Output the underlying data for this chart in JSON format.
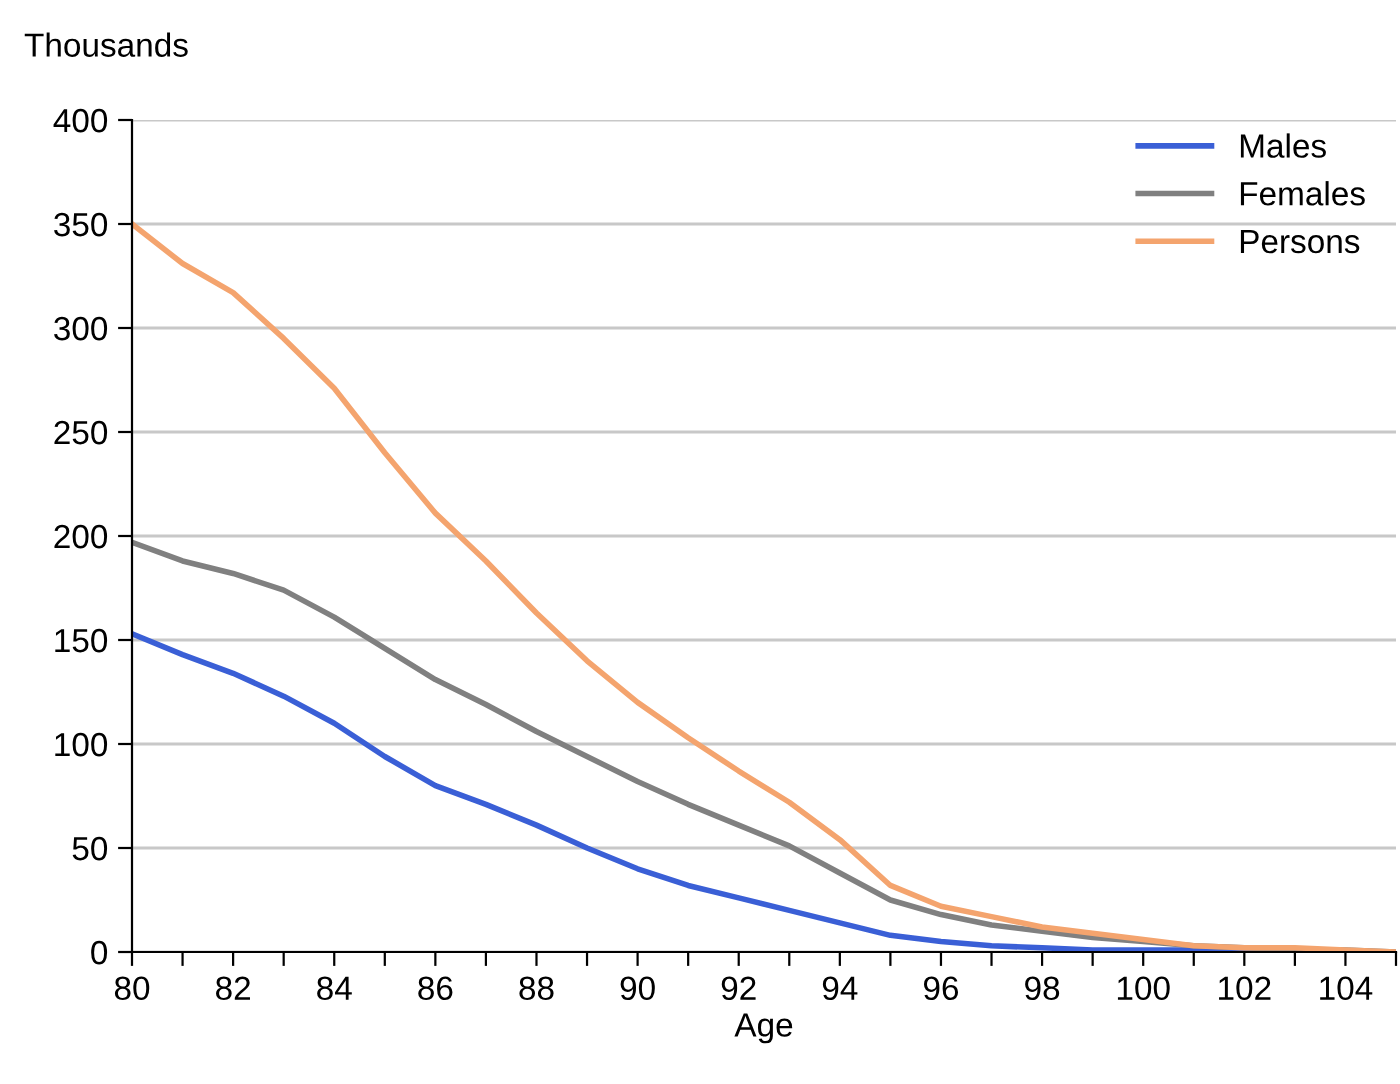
{
  "chart_data": {
    "type": "line",
    "xlabel": "Age",
    "ylabel": "Thousands",
    "x": [
      80,
      81,
      82,
      83,
      84,
      85,
      86,
      87,
      88,
      89,
      90,
      91,
      92,
      93,
      94,
      95,
      96,
      97,
      98,
      99,
      100,
      101,
      102,
      103,
      104,
      105
    ],
    "series": [
      {
        "name": "Males",
        "color": "#3a5fd6",
        "values": [
          153,
          143,
          134,
          123,
          110,
          94,
          80,
          71,
          61,
          50,
          40,
          32,
          26,
          20,
          14,
          8,
          5,
          3,
          2,
          1,
          1,
          1,
          0,
          0,
          null,
          null
        ]
      },
      {
        "name": "Females",
        "color": "#808080",
        "values": [
          197,
          188,
          182,
          174,
          161,
          146,
          131,
          119,
          106,
          94,
          82,
          71,
          61,
          51,
          38,
          25,
          18,
          13,
          10,
          7,
          5,
          3,
          2,
          1,
          1,
          0
        ]
      },
      {
        "name": "Persons",
        "color": "#f4a46e",
        "values": [
          350,
          331,
          317,
          295,
          271,
          240,
          211,
          188,
          163,
          140,
          120,
          103,
          87,
          72,
          54,
          32,
          22,
          17,
          12,
          9,
          6,
          3,
          2,
          2,
          1,
          0
        ]
      }
    ],
    "xlim": [
      80,
      105
    ],
    "xticks": [
      80,
      {
        "value": 81,
        "label": null
      },
      82,
      {
        "value": 83,
        "label": null
      },
      84,
      {
        "value": 85,
        "label": null
      },
      86,
      {
        "value": 87,
        "label": null
      },
      88,
      {
        "value": 89,
        "label": null
      },
      90,
      {
        "value": 91,
        "label": null
      },
      92,
      {
        "value": 93,
        "label": null
      },
      94,
      {
        "value": 95,
        "label": null
      },
      96,
      {
        "value": 97,
        "label": null
      },
      98,
      {
        "value": 99,
        "label": null
      },
      100,
      {
        "value": 101,
        "label": null
      },
      102,
      {
        "value": 103,
        "label": null
      },
      104,
      {
        "value": 105,
        "label": null
      }
    ],
    "ylim": [
      0,
      400
    ],
    "yticks": [
      0,
      50,
      100,
      150,
      200,
      250,
      300,
      350,
      400
    ],
    "grid": "y",
    "legend": "top right",
    "marker": "none",
    "line_style": "solid"
  }
}
